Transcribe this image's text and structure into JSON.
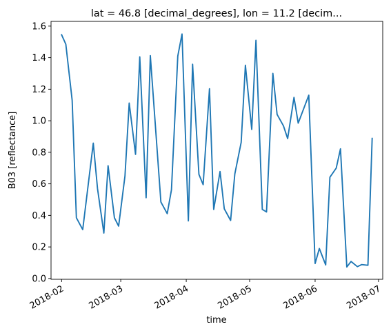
{
  "chart_data": {
    "type": "line",
    "title": "lat = 46.8 [decimal_degrees], lon = 11.2 [decim...",
    "xlabel": "time",
    "ylabel": "B03 [reflectance]",
    "color": "#1f77b4",
    "grid": false,
    "legend": "none",
    "ylim": [
      -0.005,
      1.63
    ],
    "xlim": [
      "2018-01-27",
      "2018-07-03"
    ],
    "x_ticks": [
      "2018-02-01",
      "2018-03-01",
      "2018-04-01",
      "2018-05-01",
      "2018-06-01",
      "2018-07-01"
    ],
    "x_tick_labels": [
      "2018-02",
      "2018-03",
      "2018-04",
      "2018-05",
      "2018-06",
      "2018-07"
    ],
    "y_ticks": [
      0.0,
      0.2,
      0.4,
      0.6,
      0.8,
      1.0,
      1.2,
      1.4,
      1.6
    ],
    "y_tick_labels": [
      "0.0",
      "0.2",
      "0.4",
      "0.6",
      "0.8",
      "1.0",
      "1.2",
      "1.4",
      "1.6"
    ],
    "series": [
      {
        "x": [
          "2018-02-01",
          "2018-02-03",
          "2018-02-06",
          "2018-02-08",
          "2018-02-11",
          "2018-02-16",
          "2018-02-18",
          "2018-02-21",
          "2018-02-23",
          "2018-02-26",
          "2018-02-28",
          "2018-03-03",
          "2018-03-05",
          "2018-03-08",
          "2018-03-10",
          "2018-03-13",
          "2018-03-15",
          "2018-03-20",
          "2018-03-23",
          "2018-03-25",
          "2018-03-28",
          "2018-03-30",
          "2018-04-02",
          "2018-04-04",
          "2018-04-07",
          "2018-04-09",
          "2018-04-12",
          "2018-04-14",
          "2018-04-17",
          "2018-04-19",
          "2018-04-22",
          "2018-04-24",
          "2018-04-27",
          "2018-04-29",
          "2018-05-02",
          "2018-05-04",
          "2018-05-07",
          "2018-05-09",
          "2018-05-12",
          "2018-05-14",
          "2018-05-17",
          "2018-05-19",
          "2018-05-22",
          "2018-05-24",
          "2018-05-29",
          "2018-06-01",
          "2018-06-03",
          "2018-06-06",
          "2018-06-08",
          "2018-06-11",
          "2018-06-13",
          "2018-06-16",
          "2018-06-18",
          "2018-06-21",
          "2018-06-23",
          "2018-06-26",
          "2018-06-28"
        ],
        "y": [
          1.545,
          1.485,
          1.13,
          0.385,
          0.31,
          0.858,
          0.57,
          0.288,
          0.715,
          0.385,
          0.332,
          0.65,
          1.112,
          0.787,
          1.405,
          0.512,
          1.413,
          0.485,
          0.411,
          0.562,
          1.41,
          1.55,
          0.365,
          1.358,
          0.66,
          0.595,
          1.203,
          0.438,
          0.678,
          0.442,
          0.368,
          0.663,
          0.863,
          1.352,
          0.945,
          1.51,
          0.438,
          0.422,
          1.3,
          1.04,
          0.968,
          0.887,
          1.148,
          0.985,
          1.162,
          0.095,
          0.19,
          0.086,
          0.642,
          0.7,
          0.822,
          0.073,
          0.108,
          0.075,
          0.088,
          0.084,
          0.888
        ]
      }
    ]
  }
}
